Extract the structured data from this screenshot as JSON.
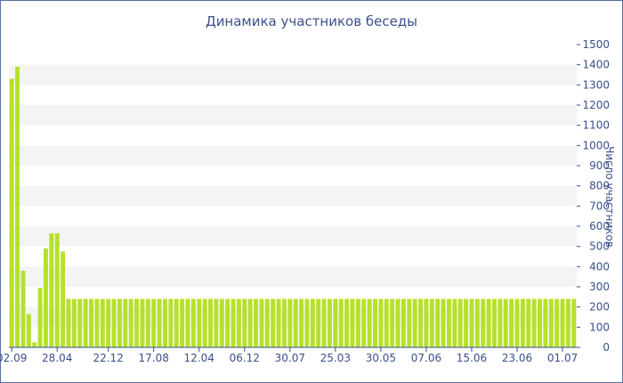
{
  "colors": {
    "bar": "#b6e12b",
    "band": "#f4f4f4",
    "axis": "#3b4f8c",
    "text": "#3b4f8c",
    "border": "#5b6fa3"
  },
  "chart_data": {
    "type": "bar",
    "title": "Динамика участников беседы",
    "xlabel": "",
    "ylabel": "Число участников",
    "ylim": [
      0,
      1500
    ],
    "y_ticks": [
      0,
      100,
      200,
      300,
      400,
      500,
      600,
      700,
      800,
      900,
      1000,
      1100,
      1200,
      1300,
      1400,
      1500
    ],
    "y_axis_position": "right",
    "x_tick_labels": [
      "02.09",
      "28.04",
      "22.12",
      "17.08",
      "12.04",
      "06.12",
      "30.07",
      "25.03",
      "30.05",
      "07.06",
      "15.06",
      "23.06",
      "01.07"
    ],
    "x_tick_bar_index": [
      0,
      8,
      17,
      25,
      33,
      41,
      49,
      57,
      65,
      73,
      81,
      89,
      97
    ],
    "values": [
      1330,
      1390,
      380,
      165,
      25,
      295,
      490,
      565,
      565,
      475,
      240,
      240,
      240,
      240,
      240,
      240,
      240,
      240,
      240,
      240,
      240,
      240,
      240,
      240,
      240,
      240,
      240,
      240,
      240,
      240,
      240,
      240,
      240,
      240,
      240,
      240,
      240,
      240,
      240,
      240,
      240,
      240,
      240,
      240,
      240,
      240,
      240,
      240,
      240,
      240,
      240,
      240,
      240,
      240,
      240,
      240,
      240,
      240,
      240,
      240,
      240,
      240,
      240,
      240,
      240,
      240,
      240,
      240,
      240,
      240,
      240,
      240,
      240,
      240,
      240,
      240,
      240,
      240,
      240,
      240,
      240,
      240,
      240,
      240,
      240,
      240,
      240,
      240,
      240,
      240,
      240,
      240,
      240,
      240,
      240,
      240,
      240,
      240,
      240,
      240
    ],
    "grid": "alternating horizontal bands",
    "legend": "none"
  }
}
